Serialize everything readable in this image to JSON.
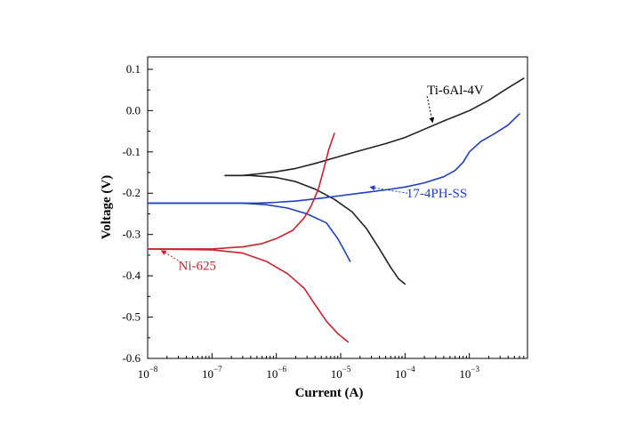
{
  "chart_data": {
    "type": "line",
    "xlabel": "Current (A)",
    "ylabel": "Voltage (V)",
    "x_scale": "log",
    "xlim": [
      1e-08,
      0.008
    ],
    "ylim": [
      -0.6,
      0.13
    ],
    "x_ticks": [
      {
        "value": 1e-08,
        "base": "10",
        "exp": "−8"
      },
      {
        "value": 1e-07,
        "base": "10",
        "exp": "−7"
      },
      {
        "value": 1e-06,
        "base": "10",
        "exp": "−6"
      },
      {
        "value": 1e-05,
        "base": "10",
        "exp": "−5"
      },
      {
        "value": 0.0001,
        "base": "10",
        "exp": "−4"
      },
      {
        "value": 0.001,
        "base": "10",
        "exp": "−3"
      }
    ],
    "y_ticks": [
      {
        "value": 0.1,
        "label": "0.1"
      },
      {
        "value": 0.0,
        "label": "0.0"
      },
      {
        "value": -0.1,
        "label": "-0.1"
      },
      {
        "value": -0.2,
        "label": "-0.2"
      },
      {
        "value": -0.3,
        "label": "-0.3"
      },
      {
        "value": -0.4,
        "label": "-0.4"
      },
      {
        "value": -0.5,
        "label": "-0.5"
      },
      {
        "value": -0.6,
        "label": "-0.6"
      }
    ],
    "grid": false,
    "legend": "none",
    "series": [
      {
        "name": "Ti-6Al-4V",
        "color": "#222222",
        "branches": [
          [
            [
              1.6e-07,
              -0.157
            ],
            [
              3e-07,
              -0.157
            ],
            [
              6e-07,
              -0.152
            ],
            [
              1e-06,
              -0.148
            ],
            [
              2e-06,
              -0.14
            ],
            [
              4e-06,
              -0.128
            ],
            [
              1e-05,
              -0.11
            ],
            [
              2e-05,
              -0.097
            ],
            [
              5e-05,
              -0.08
            ],
            [
              0.0001,
              -0.065
            ],
            [
              0.0002,
              -0.045
            ],
            [
              0.0004,
              -0.025
            ],
            [
              0.001,
              0.0
            ],
            [
              0.002,
              0.025
            ],
            [
              0.004,
              0.055
            ],
            [
              0.007,
              0.078
            ]
          ],
          [
            [
              1.6e-07,
              -0.157
            ],
            [
              4e-07,
              -0.157
            ],
            [
              1e-06,
              -0.162
            ],
            [
              2e-06,
              -0.172
            ],
            [
              4e-06,
              -0.19
            ],
            [
              8e-06,
              -0.215
            ],
            [
              1.5e-05,
              -0.245
            ],
            [
              2.5e-05,
              -0.285
            ],
            [
              4e-05,
              -0.335
            ],
            [
              6e-05,
              -0.38
            ],
            [
              8e-05,
              -0.408
            ],
            [
              0.0001,
              -0.42
            ]
          ]
        ]
      },
      {
        "name": "17-4PH-SS",
        "color": "#1f3fbf",
        "branches": [
          [
            [
              1e-08,
              -0.224
            ],
            [
              2e-07,
              -0.224
            ],
            [
              5e-07,
              -0.224
            ],
            [
              1e-06,
              -0.222
            ],
            [
              2e-06,
              -0.219
            ],
            [
              5e-06,
              -0.212
            ],
            [
              1e-05,
              -0.206
            ],
            [
              2e-05,
              -0.2
            ],
            [
              5e-05,
              -0.192
            ],
            [
              0.0001,
              -0.185
            ],
            [
              0.0002,
              -0.175
            ],
            [
              0.0004,
              -0.16
            ],
            [
              0.0006,
              -0.145
            ],
            [
              0.0008,
              -0.125
            ],
            [
              0.001,
              -0.1
            ],
            [
              0.0015,
              -0.075
            ],
            [
              0.0025,
              -0.055
            ],
            [
              0.004,
              -0.035
            ],
            [
              0.006,
              -0.008
            ]
          ],
          [
            [
              1e-08,
              -0.224
            ],
            [
              3e-07,
              -0.224
            ],
            [
              7e-07,
              -0.228
            ],
            [
              1.5e-06,
              -0.236
            ],
            [
              3e-06,
              -0.25
            ],
            [
              6e-06,
              -0.272
            ],
            [
              9e-06,
              -0.31
            ],
            [
              1.2e-05,
              -0.345
            ],
            [
              1.4e-05,
              -0.365
            ]
          ]
        ]
      },
      {
        "name": "Ni-625",
        "color": "#c8232c",
        "branches": [
          [
            [
              1e-08,
              -0.335
            ],
            [
              1e-07,
              -0.335
            ],
            [
              3e-07,
              -0.33
            ],
            [
              6e-07,
              -0.322
            ],
            [
              1e-06,
              -0.31
            ],
            [
              1.8e-06,
              -0.29
            ],
            [
              2.7e-06,
              -0.26
            ],
            [
              3.5e-06,
              -0.23
            ],
            [
              4.5e-06,
              -0.19
            ],
            [
              5.5e-06,
              -0.14
            ],
            [
              6.5e-06,
              -0.095
            ],
            [
              8e-06,
              -0.055
            ]
          ],
          [
            [
              1e-08,
              -0.335
            ],
            [
              1e-07,
              -0.337
            ],
            [
              3e-07,
              -0.345
            ],
            [
              7e-07,
              -0.365
            ],
            [
              1.5e-06,
              -0.395
            ],
            [
              2.7e-06,
              -0.43
            ],
            [
              4e-06,
              -0.47
            ],
            [
              6e-06,
              -0.51
            ],
            [
              9e-06,
              -0.54
            ],
            [
              1.3e-05,
              -0.56
            ]
          ]
        ]
      }
    ],
    "annotations": [
      {
        "text": "Ti-6Al-4V",
        "color": "#000000",
        "series": 0,
        "label_at": [
          0.00022,
          0.05
        ],
        "arrow_from": [
          0.00022,
          0.035
        ],
        "arrow_to": [
          0.00027,
          -0.03
        ]
      },
      {
        "text": "17-4PH-SS",
        "color": "#1f3fbf",
        "series": 1,
        "label_at": [
          0.000105,
          -0.2
        ],
        "arrow_from": [
          0.00011,
          -0.2
        ],
        "arrow_to": [
          2.8e-05,
          -0.185
        ]
      },
      {
        "text": "Ni-625",
        "color": "#c8232c",
        "series": 2,
        "label_at": [
          3e-08,
          -0.375
        ],
        "arrow_from": [
          3e-08,
          -0.363
        ],
        "arrow_to": [
          1.6e-08,
          -0.338
        ]
      }
    ]
  }
}
